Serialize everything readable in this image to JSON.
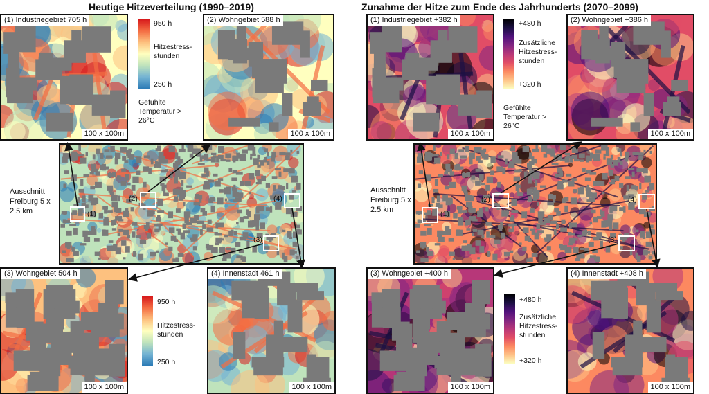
{
  "colors": {
    "spectral": [
      "#2c7bb6",
      "#74b3d3",
      "#bfe3bc",
      "#ffffbf",
      "#fdc17f",
      "#f46d43",
      "#d7191c"
    ],
    "magma": [
      "#fcfdbf",
      "#fec287",
      "#fc8961",
      "#e14d66",
      "#b73779",
      "#822681",
      "#51127c",
      "#1c1044",
      "#000004"
    ],
    "building": "#7a7a7a",
    "arrow": "#111111",
    "marker": "#ffffff"
  },
  "left": {
    "title": "Heutige Hitzeverteilung (1990–2019)",
    "overview_label": "Ausschnitt Freiburg 5 x 2.5 km",
    "felt_temp": "Gefühlte Temperatur > 26°C",
    "cbar_top": {
      "max": "950 h",
      "label": "Hitzestress-stunden",
      "min": "250 h"
    },
    "cbar_bottom": {
      "max": "950 h",
      "label": "Hitzestress-stunden",
      "min": "250 h"
    },
    "insets": [
      {
        "label": "(1) Industriegebiet 705 h",
        "scale": "100 x 100m"
      },
      {
        "label": "(2) Wohngebiet 588 h",
        "scale": "100 x 100m"
      },
      {
        "label": "(3) Wohngebiet 504 h",
        "scale": "100 x 100m"
      },
      {
        "label": "(4) Innenstadt 461 h",
        "scale": "100 x 100m"
      }
    ],
    "markers": [
      "(1)",
      "(2)",
      "(3)",
      "(4)"
    ]
  },
  "right": {
    "title": "Zunahme der Hitze zum Ende des Jahrhunderts (2070–2099)",
    "overview_label": "Ausschnitt Freiburg 5 x 2.5 km",
    "felt_temp": "Gefühlte Temperatur > 26°C",
    "cbar_top": {
      "max": "+480 h",
      "label": "Zusätzliche Hitzestress-stunden",
      "min": "+320 h"
    },
    "cbar_bottom": {
      "max": "+480 h",
      "label": "Zusätzliche Hitzestress-stunden",
      "min": "+320 h"
    },
    "insets": [
      {
        "label": "(1) Industriegebiet  +382 h",
        "scale": "100 x 100m"
      },
      {
        "label": "(2) Wohngebiet +386 h",
        "scale": "100 x 100m"
      },
      {
        "label": "(3) Wohngebiet +400 h",
        "scale": "100 x 100m"
      },
      {
        "label": "(4) Innenstadt +408 h",
        "scale": "100 x 100m"
      }
    ],
    "markers": [
      "(1)",
      "(2)",
      "(3)",
      "(4)"
    ]
  }
}
